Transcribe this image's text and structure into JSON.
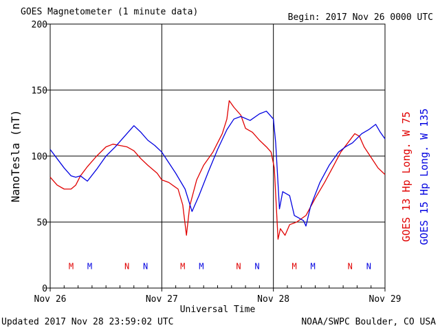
{
  "header": {
    "title": "GOES Magnetometer (1 minute data)",
    "begin": "Begin:  2017 Nov 26 0000 UTC"
  },
  "footer": {
    "updated": "Updated 2017 Nov 28 23:59:02 UTC",
    "credit": "NOAA/SWPC Boulder, CO USA"
  },
  "chart_data": {
    "type": "line",
    "title": "GOES Magnetometer (1 minute data)",
    "xlabel": "Universal Time",
    "ylabel": "NanoTesla (nT)",
    "xlim": [
      0,
      72
    ],
    "ylim": [
      0,
      200
    ],
    "x_ticks": [
      {
        "x": 0,
        "label": "Nov 26"
      },
      {
        "x": 24,
        "label": "Nov 27"
      },
      {
        "x": 48,
        "label": "Nov 28"
      },
      {
        "x": 72,
        "label": "Nov 29"
      }
    ],
    "y_ticks": [
      0,
      50,
      100,
      150,
      200
    ],
    "grid": true,
    "series": [
      {
        "name": "GOES 13 Hp",
        "legend": "GOES 13 Hp  Long. W 75",
        "color": "#e00000",
        "x": [
          0,
          1.5,
          3,
          4.5,
          5.5,
          6.5,
          8,
          10,
          12,
          13.5,
          15,
          16.5,
          18,
          19.5,
          21,
          23,
          24,
          25.5,
          27.5,
          28.5,
          29.3,
          30,
          31.5,
          33,
          35,
          37,
          38,
          38.5,
          39.5,
          41,
          42,
          43.5,
          45,
          46.5,
          47.5,
          48.2,
          49,
          49.5,
          50.5,
          51.5,
          53,
          55,
          57,
          59,
          61,
          62.5,
          64,
          65.5,
          66.5,
          67.5,
          69,
          70.5,
          72
        ],
        "values": [
          84,
          78,
          75,
          75,
          78,
          85,
          92,
          100,
          107,
          109,
          108,
          107,
          104,
          98,
          93,
          87,
          82,
          80,
          75,
          63,
          40,
          62,
          82,
          93,
          103,
          117,
          128,
          142,
          137,
          131,
          121,
          118,
          112,
          107,
          103,
          91,
          37,
          45,
          40,
          48,
          50,
          55,
          68,
          80,
          93,
          103,
          110,
          117,
          115,
          107,
          99,
          91,
          86
        ]
      },
      {
        "name": "GOES 15 Hp",
        "legend": "GOES 15 Hp  Long. W 135",
        "color": "#0000e0",
        "x": [
          0,
          1.5,
          3,
          4.5,
          5.5,
          6.5,
          8,
          10,
          12,
          14,
          16,
          18,
          19.5,
          21,
          22.5,
          24,
          25.5,
          27,
          29,
          30.5,
          32,
          34,
          36,
          38,
          39.5,
          41,
          43,
          45,
          46.5,
          48,
          48.5,
          49.3,
          50,
          51.5,
          52.5,
          53.5,
          54.5,
          55,
          56,
          58,
          60,
          62,
          63.5,
          65,
          67,
          68.5,
          70,
          71,
          72
        ],
        "values": [
          105,
          98,
          91,
          85,
          84,
          85,
          81,
          90,
          100,
          107,
          115,
          123,
          118,
          112,
          108,
          103,
          95,
          87,
          75,
          58,
          70,
          88,
          105,
          120,
          128,
          130,
          127,
          132,
          134,
          128,
          110,
          60,
          73,
          70,
          55,
          53,
          51,
          47,
          62,
          80,
          93,
          103,
          107,
          110,
          117,
          120,
          124,
          118,
          113
        ]
      }
    ],
    "annotations": [
      {
        "text": "M",
        "x": 4.5,
        "color": "#e00000"
      },
      {
        "text": "N",
        "x": 16.5,
        "color": "#e00000"
      },
      {
        "text": "M",
        "x": 28.5,
        "color": "#e00000"
      },
      {
        "text": "N",
        "x": 40.5,
        "color": "#e00000"
      },
      {
        "text": "M",
        "x": 52.5,
        "color": "#e00000"
      },
      {
        "text": "N",
        "x": 64.5,
        "color": "#e00000"
      },
      {
        "text": "M",
        "x": 8.5,
        "color": "#0000e0"
      },
      {
        "text": "N",
        "x": 20.5,
        "color": "#0000e0"
      },
      {
        "text": "M",
        "x": 32.5,
        "color": "#0000e0"
      },
      {
        "text": "N",
        "x": 44.5,
        "color": "#0000e0"
      },
      {
        "text": "M",
        "x": 56.5,
        "color": "#0000e0"
      },
      {
        "text": "N",
        "x": 68.5,
        "color": "#0000e0"
      }
    ],
    "annotation_y": 17
  }
}
